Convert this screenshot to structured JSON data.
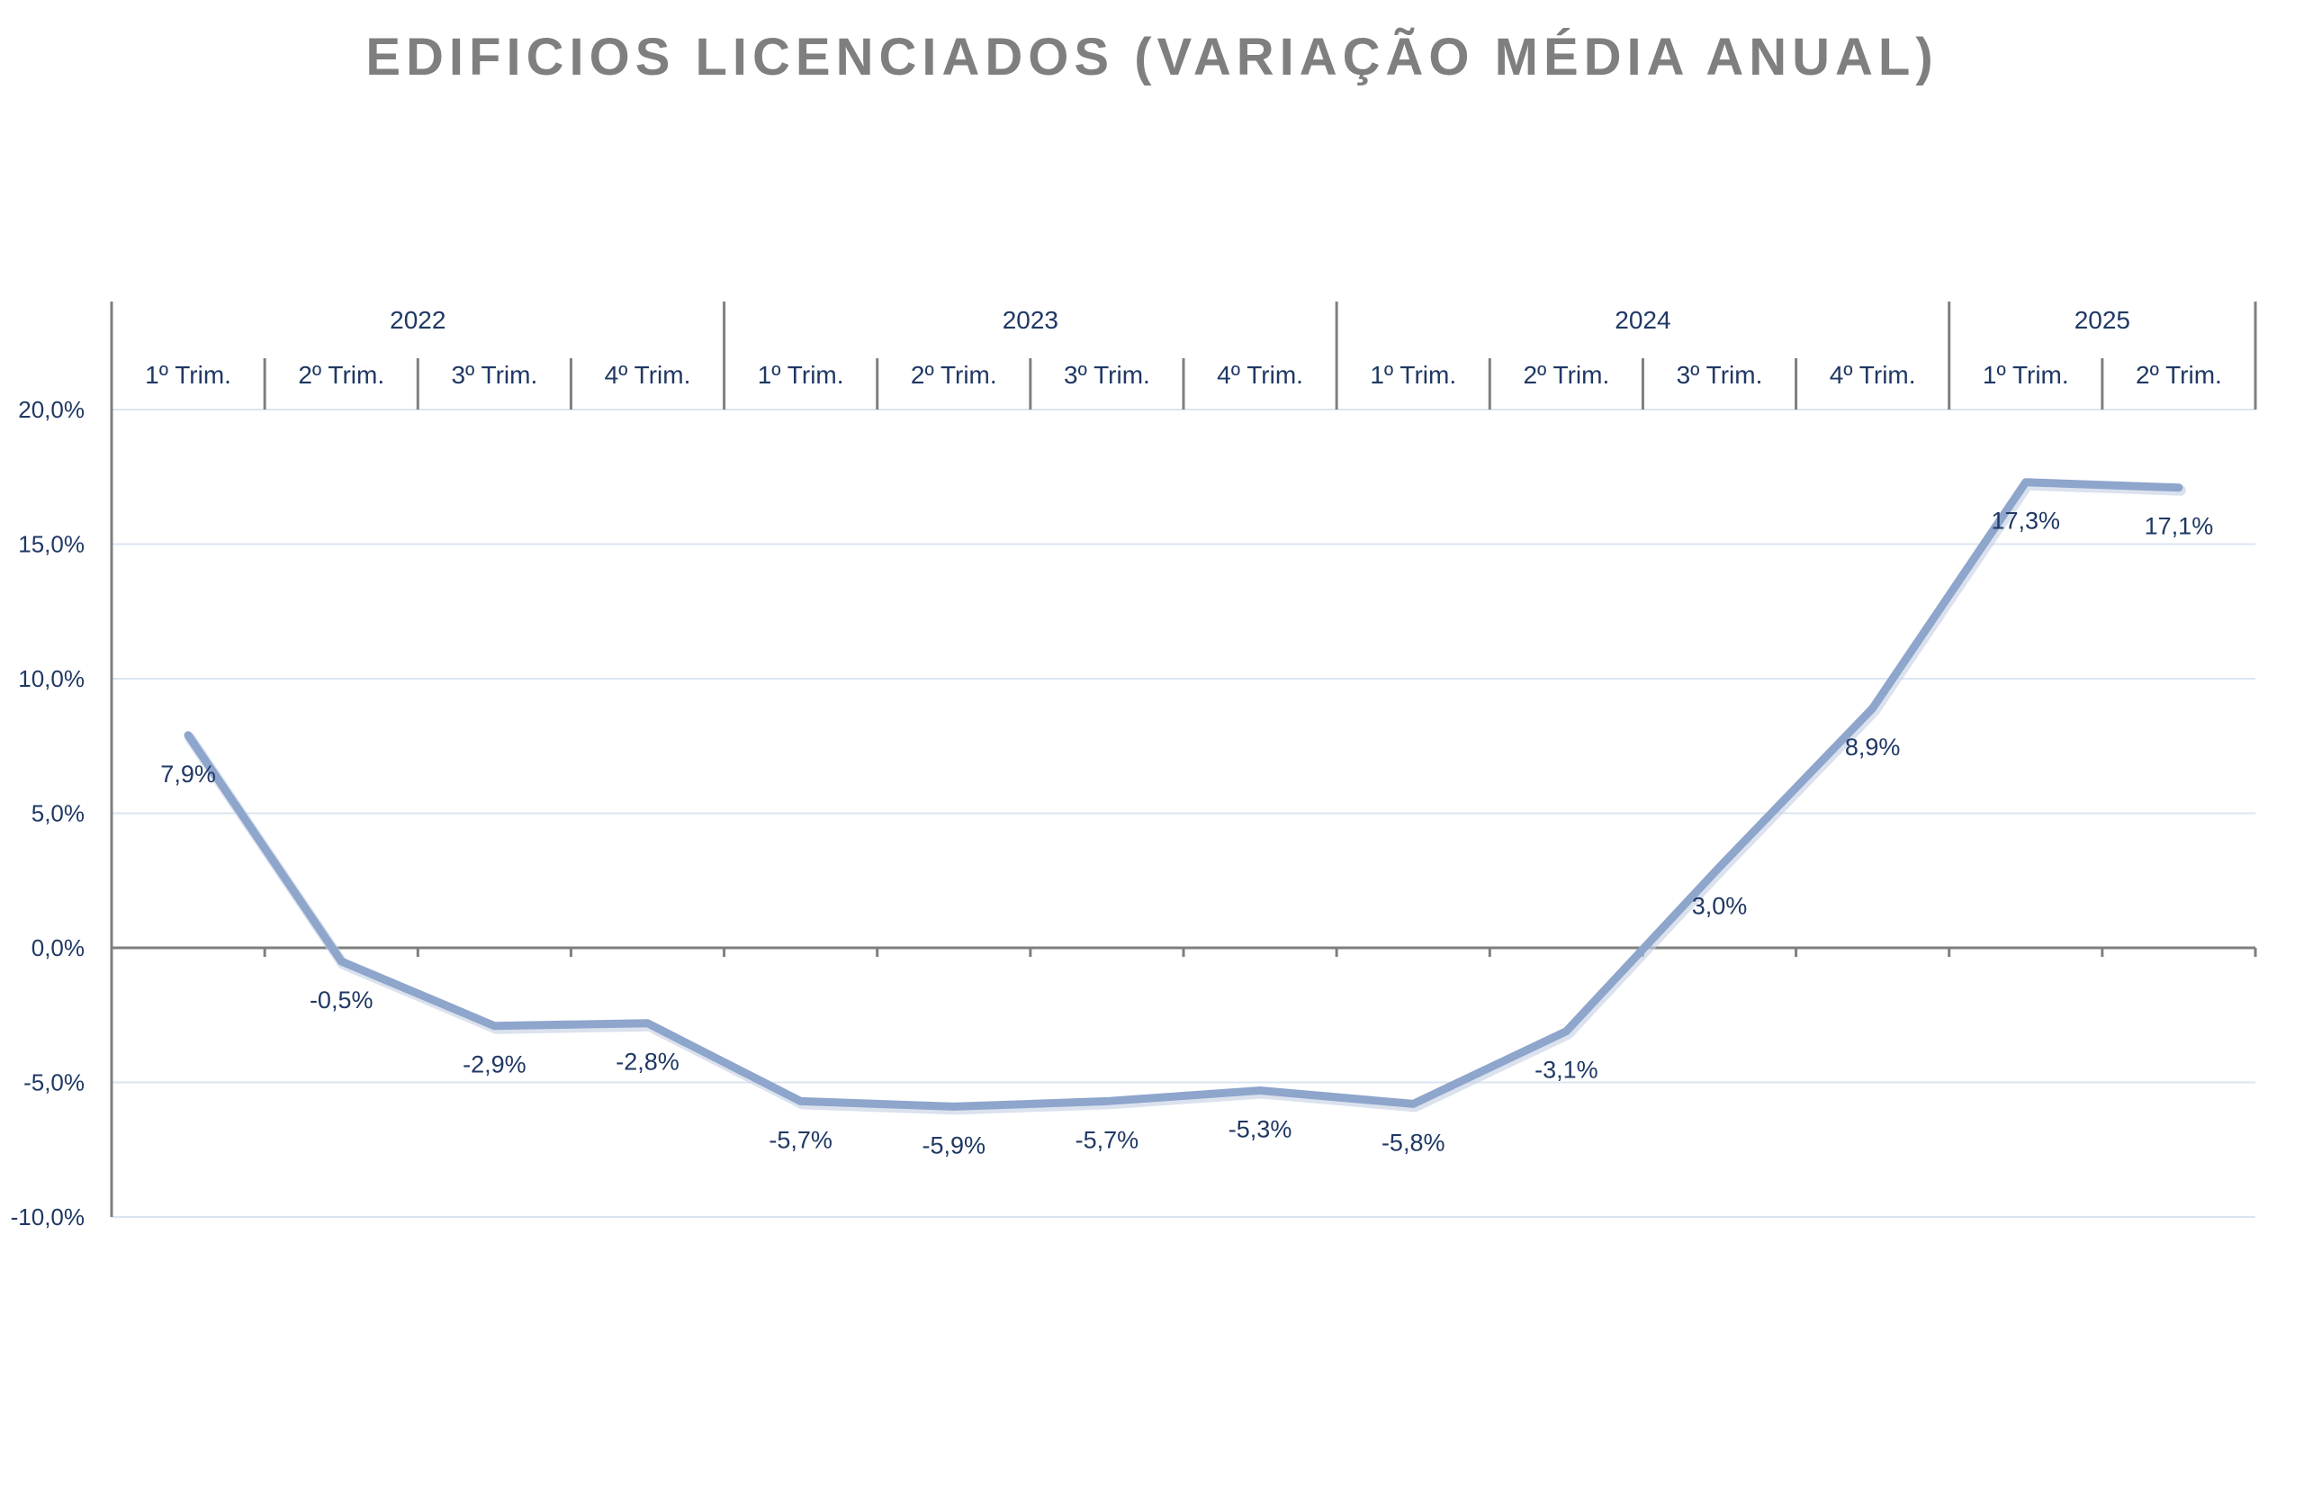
{
  "chart_data": {
    "type": "line",
    "title": "EDIFICIOS LICENCIADOS (VARIAÇÃO MÉDIA ANUAL)",
    "xlabel": "",
    "ylabel": "",
    "years": [
      {
        "label": "2022",
        "span": 4
      },
      {
        "label": "2023",
        "span": 4
      },
      {
        "label": "2024",
        "span": 4
      },
      {
        "label": "2025",
        "span": 2
      }
    ],
    "categories": [
      "1º Trim.",
      "2º Trim.",
      "3º Trim.",
      "4º Trim.",
      "1º Trim.",
      "2º Trim.",
      "3º Trim.",
      "4º Trim.",
      "1º Trim.",
      "2º Trim.",
      "3º Trim.",
      "4º Trim.",
      "1º Trim.",
      "2º Trim."
    ],
    "series": [
      {
        "values": [
          7.9,
          -0.5,
          -2.9,
          -2.8,
          -5.7,
          -5.9,
          -5.7,
          -5.3,
          -5.8,
          -3.1,
          3.0,
          8.9,
          17.3,
          17.1
        ],
        "data_labels": [
          "7,9%",
          "-0,5%",
          "-2,9%",
          "-2,8%",
          "-5,7%",
          "-5,9%",
          "-5,7%",
          "-5,3%",
          "-5,8%",
          "-3,1%",
          "3,0%",
          "8,9%",
          "17,3%",
          "17,1%"
        ]
      }
    ],
    "ylim": [
      -10,
      20
    ],
    "yticks": [
      20,
      15,
      10,
      5,
      0,
      -5,
      -10
    ],
    "ytick_labels": [
      "20,0%",
      "15,0%",
      "10,0%",
      "5,0%",
      "0,0%",
      "-5,0%",
      "-10,0%"
    ],
    "grid": true,
    "legend": "none",
    "colors": {
      "line": "#8ea5cc",
      "gridline": "#dbe5f1",
      "axis": "#7f7f7f",
      "text": "#1f3864",
      "title": "#7f7f7f"
    }
  }
}
